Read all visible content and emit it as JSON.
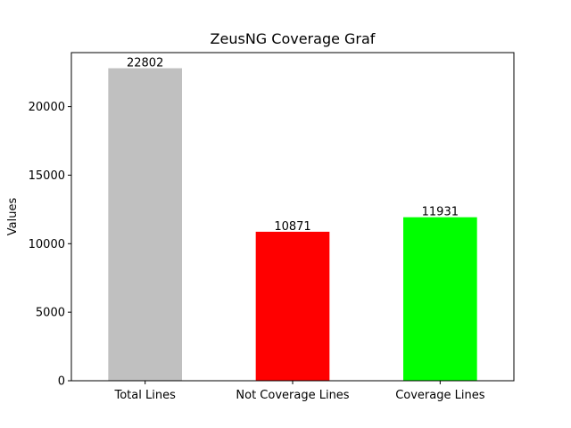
{
  "chart_data": {
    "type": "bar",
    "title": "ZeusNG Coverage Graf",
    "xlabel": "",
    "ylabel": "Values",
    "categories": [
      "Total Lines",
      "Not Coverage Lines",
      "Coverage Lines"
    ],
    "values": [
      22802,
      10871,
      11931
    ],
    "data_labels": [
      "22802",
      "10871",
      "11931"
    ],
    "colors": [
      "#c0c0c0",
      "#ff0000",
      "#00ff00"
    ],
    "ylim": [
      0,
      23942
    ],
    "yticks": [
      0,
      5000,
      10000,
      15000,
      20000
    ],
    "ytick_labels": [
      "0",
      "5000",
      "10000",
      "15000",
      "20000"
    ],
    "grid": false,
    "legend": "none"
  }
}
